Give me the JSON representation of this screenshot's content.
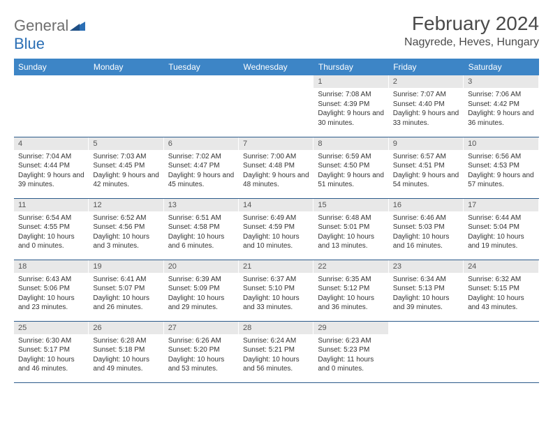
{
  "logo": {
    "text1": "General",
    "text2": "Blue"
  },
  "title": "February 2024",
  "location": "Nagyrede, Heves, Hungary",
  "colors": {
    "header_bg": "#3d85c6",
    "header_text": "#ffffff",
    "daynum_bg": "#e8e8e8",
    "rule": "#2b5a8a",
    "logo_gray": "#6e6e6e",
    "logo_blue": "#2b6fb5"
  },
  "dow": [
    "Sunday",
    "Monday",
    "Tuesday",
    "Wednesday",
    "Thursday",
    "Friday",
    "Saturday"
  ],
  "weeks": [
    [
      null,
      null,
      null,
      null,
      {
        "n": "1",
        "sr": "7:08 AM",
        "ss": "4:39 PM",
        "dl": "9 hours and 30 minutes."
      },
      {
        "n": "2",
        "sr": "7:07 AM",
        "ss": "4:40 PM",
        "dl": "9 hours and 33 minutes."
      },
      {
        "n": "3",
        "sr": "7:06 AM",
        "ss": "4:42 PM",
        "dl": "9 hours and 36 minutes."
      }
    ],
    [
      {
        "n": "4",
        "sr": "7:04 AM",
        "ss": "4:44 PM",
        "dl": "9 hours and 39 minutes."
      },
      {
        "n": "5",
        "sr": "7:03 AM",
        "ss": "4:45 PM",
        "dl": "9 hours and 42 minutes."
      },
      {
        "n": "6",
        "sr": "7:02 AM",
        "ss": "4:47 PM",
        "dl": "9 hours and 45 minutes."
      },
      {
        "n": "7",
        "sr": "7:00 AM",
        "ss": "4:48 PM",
        "dl": "9 hours and 48 minutes."
      },
      {
        "n": "8",
        "sr": "6:59 AM",
        "ss": "4:50 PM",
        "dl": "9 hours and 51 minutes."
      },
      {
        "n": "9",
        "sr": "6:57 AM",
        "ss": "4:51 PM",
        "dl": "9 hours and 54 minutes."
      },
      {
        "n": "10",
        "sr": "6:56 AM",
        "ss": "4:53 PM",
        "dl": "9 hours and 57 minutes."
      }
    ],
    [
      {
        "n": "11",
        "sr": "6:54 AM",
        "ss": "4:55 PM",
        "dl": "10 hours and 0 minutes."
      },
      {
        "n": "12",
        "sr": "6:52 AM",
        "ss": "4:56 PM",
        "dl": "10 hours and 3 minutes."
      },
      {
        "n": "13",
        "sr": "6:51 AM",
        "ss": "4:58 PM",
        "dl": "10 hours and 6 minutes."
      },
      {
        "n": "14",
        "sr": "6:49 AM",
        "ss": "4:59 PM",
        "dl": "10 hours and 10 minutes."
      },
      {
        "n": "15",
        "sr": "6:48 AM",
        "ss": "5:01 PM",
        "dl": "10 hours and 13 minutes."
      },
      {
        "n": "16",
        "sr": "6:46 AM",
        "ss": "5:03 PM",
        "dl": "10 hours and 16 minutes."
      },
      {
        "n": "17",
        "sr": "6:44 AM",
        "ss": "5:04 PM",
        "dl": "10 hours and 19 minutes."
      }
    ],
    [
      {
        "n": "18",
        "sr": "6:43 AM",
        "ss": "5:06 PM",
        "dl": "10 hours and 23 minutes."
      },
      {
        "n": "19",
        "sr": "6:41 AM",
        "ss": "5:07 PM",
        "dl": "10 hours and 26 minutes."
      },
      {
        "n": "20",
        "sr": "6:39 AM",
        "ss": "5:09 PM",
        "dl": "10 hours and 29 minutes."
      },
      {
        "n": "21",
        "sr": "6:37 AM",
        "ss": "5:10 PM",
        "dl": "10 hours and 33 minutes."
      },
      {
        "n": "22",
        "sr": "6:35 AM",
        "ss": "5:12 PM",
        "dl": "10 hours and 36 minutes."
      },
      {
        "n": "23",
        "sr": "6:34 AM",
        "ss": "5:13 PM",
        "dl": "10 hours and 39 minutes."
      },
      {
        "n": "24",
        "sr": "6:32 AM",
        "ss": "5:15 PM",
        "dl": "10 hours and 43 minutes."
      }
    ],
    [
      {
        "n": "25",
        "sr": "6:30 AM",
        "ss": "5:17 PM",
        "dl": "10 hours and 46 minutes."
      },
      {
        "n": "26",
        "sr": "6:28 AM",
        "ss": "5:18 PM",
        "dl": "10 hours and 49 minutes."
      },
      {
        "n": "27",
        "sr": "6:26 AM",
        "ss": "5:20 PM",
        "dl": "10 hours and 53 minutes."
      },
      {
        "n": "28",
        "sr": "6:24 AM",
        "ss": "5:21 PM",
        "dl": "10 hours and 56 minutes."
      },
      {
        "n": "29",
        "sr": "6:23 AM",
        "ss": "5:23 PM",
        "dl": "11 hours and 0 minutes."
      },
      null,
      null
    ]
  ],
  "labels": {
    "sunrise": "Sunrise:",
    "sunset": "Sunset:",
    "daylight": "Daylight:"
  }
}
